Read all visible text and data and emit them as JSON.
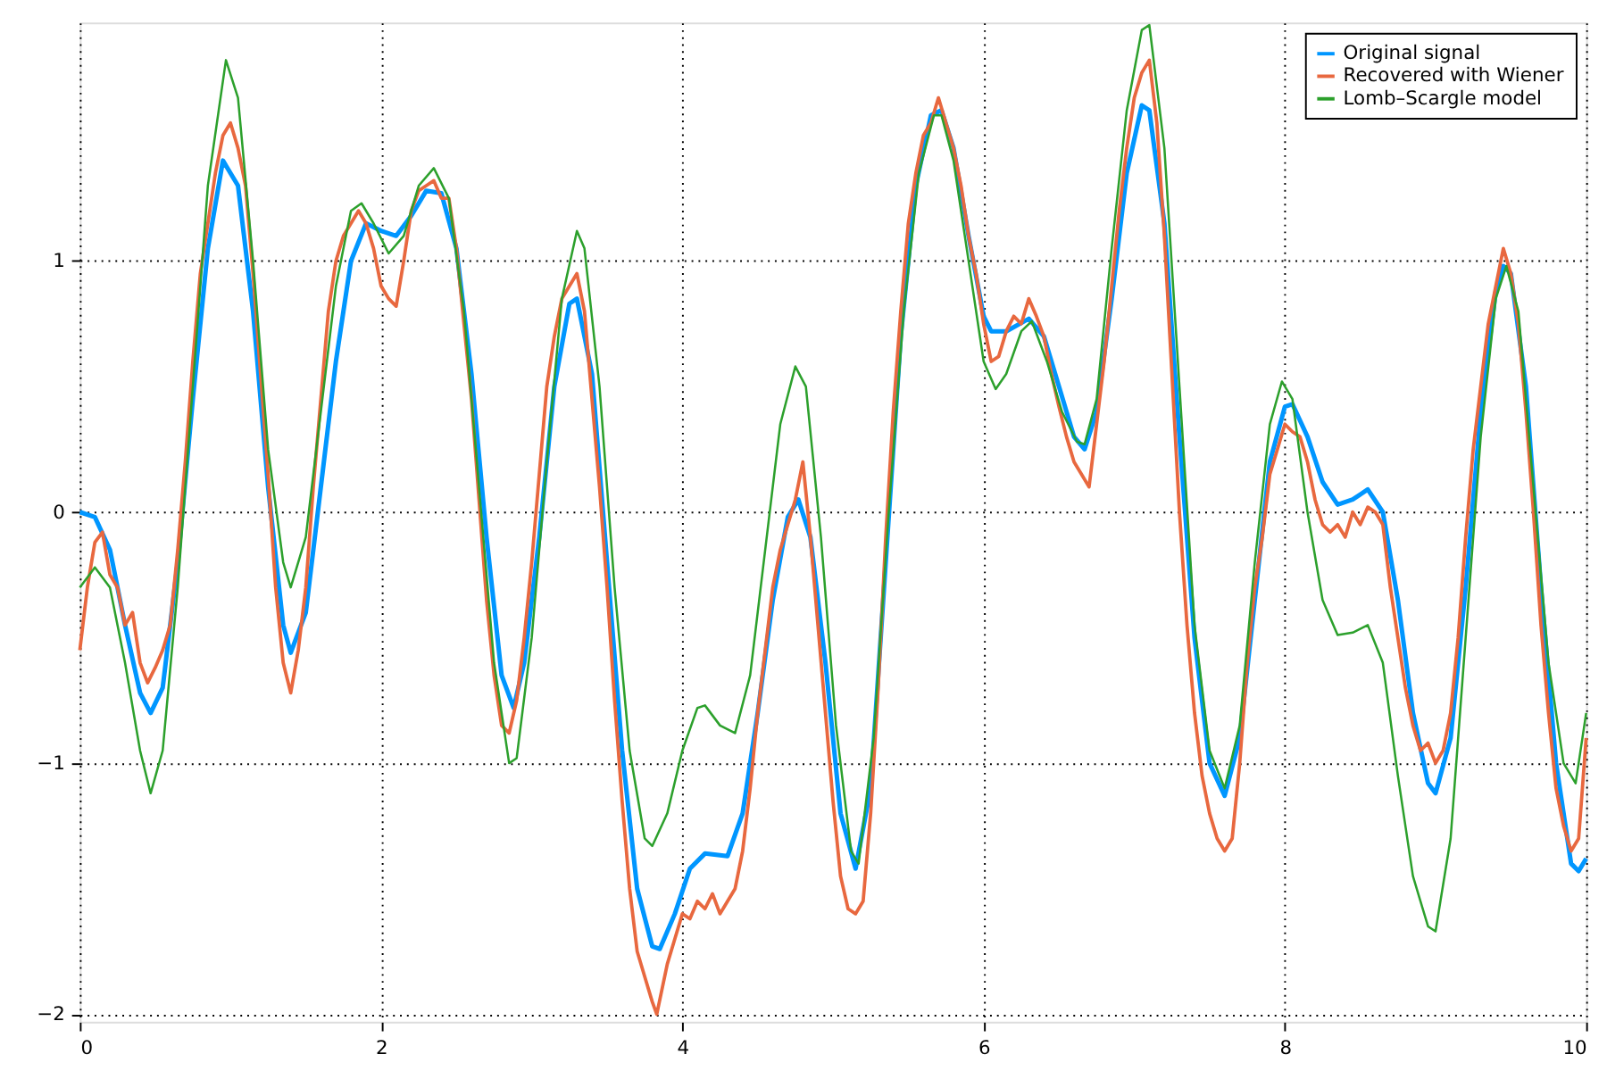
{
  "chart_data": {
    "type": "line",
    "xlim": [
      0,
      10
    ],
    "xticks": [
      0,
      2,
      4,
      6,
      8,
      10
    ],
    "ylim": [
      -2.03,
      1.95
    ],
    "yticks": [
      -2,
      -1,
      0,
      1
    ],
    "grid": true,
    "legend": "top right",
    "line_style": "solid",
    "marker": "none",
    "series": [
      {
        "name": "Original signal",
        "color": "#0096ff",
        "x": [
          0,
          0.1,
          0.2,
          0.3,
          0.4,
          0.47,
          0.55,
          0.65,
          0.75,
          0.85,
          0.95,
          1.05,
          1.15,
          1.25,
          1.35,
          1.4,
          1.5,
          1.6,
          1.7,
          1.8,
          1.9,
          2.0,
          2.1,
          2.2,
          2.3,
          2.4,
          2.5,
          2.6,
          2.7,
          2.8,
          2.88,
          2.95,
          3.05,
          3.15,
          3.25,
          3.3,
          3.4,
          3.5,
          3.6,
          3.7,
          3.8,
          3.85,
          3.95,
          4.05,
          4.15,
          4.3,
          4.4,
          4.5,
          4.6,
          4.7,
          4.77,
          4.85,
          4.95,
          5.05,
          5.15,
          5.25,
          5.35,
          5.45,
          5.55,
          5.65,
          5.72,
          5.8,
          5.9,
          6.0,
          6.05,
          6.15,
          6.3,
          6.4,
          6.5,
          6.6,
          6.67,
          6.75,
          6.85,
          6.95,
          7.05,
          7.1,
          7.2,
          7.3,
          7.4,
          7.5,
          7.6,
          7.7,
          7.8,
          7.9,
          8.0,
          8.05,
          8.15,
          8.25,
          8.35,
          8.45,
          8.55,
          8.65,
          8.75,
          8.85,
          8.95,
          9.0,
          9.1,
          9.2,
          9.3,
          9.4,
          9.45,
          9.5,
          9.6,
          9.7,
          9.8,
          9.9,
          9.95,
          10
        ],
        "values": [
          0,
          -0.02,
          -0.15,
          -0.45,
          -0.72,
          -0.8,
          -0.7,
          -0.2,
          0.45,
          1.05,
          1.4,
          1.3,
          0.8,
          0.1,
          -0.45,
          -0.56,
          -0.4,
          0.1,
          0.6,
          1.0,
          1.15,
          1.12,
          1.1,
          1.18,
          1.28,
          1.27,
          1.05,
          0.55,
          -0.1,
          -0.65,
          -0.78,
          -0.6,
          -0.1,
          0.5,
          0.83,
          0.85,
          0.55,
          -0.2,
          -0.95,
          -1.5,
          -1.73,
          -1.74,
          -1.6,
          -1.42,
          -1.36,
          -1.37,
          -1.2,
          -0.8,
          -0.35,
          -0.02,
          0.05,
          -0.1,
          -0.6,
          -1.2,
          -1.42,
          -1.1,
          -0.2,
          0.7,
          1.3,
          1.58,
          1.6,
          1.45,
          1.1,
          0.78,
          0.72,
          0.72,
          0.77,
          0.7,
          0.5,
          0.3,
          0.25,
          0.4,
          0.85,
          1.35,
          1.62,
          1.6,
          1.15,
          0.3,
          -0.5,
          -1.0,
          -1.13,
          -0.9,
          -0.35,
          0.2,
          0.42,
          0.43,
          0.3,
          0.12,
          0.03,
          0.05,
          0.09,
          0.0,
          -0.35,
          -0.8,
          -1.08,
          -1.12,
          -0.9,
          -0.3,
          0.4,
          0.88,
          0.98,
          0.95,
          0.5,
          -0.3,
          -1.0,
          -1.4,
          -1.43,
          -1.38
        ]
      },
      {
        "name": "Recovered with Wiener",
        "color": "#e8683f",
        "x": [
          0,
          0.05,
          0.1,
          0.15,
          0.2,
          0.25,
          0.3,
          0.35,
          0.4,
          0.45,
          0.5,
          0.55,
          0.6,
          0.65,
          0.7,
          0.75,
          0.8,
          0.85,
          0.9,
          0.95,
          1.0,
          1.05,
          1.1,
          1.15,
          1.2,
          1.25,
          1.3,
          1.35,
          1.4,
          1.45,
          1.5,
          1.55,
          1.6,
          1.65,
          1.7,
          1.75,
          1.8,
          1.85,
          1.9,
          1.95,
          2.0,
          2.05,
          2.1,
          2.15,
          2.2,
          2.25,
          2.3,
          2.35,
          2.4,
          2.45,
          2.5,
          2.55,
          2.6,
          2.65,
          2.7,
          2.75,
          2.8,
          2.85,
          2.9,
          2.95,
          3.0,
          3.05,
          3.1,
          3.15,
          3.2,
          3.25,
          3.3,
          3.35,
          3.4,
          3.45,
          3.5,
          3.55,
          3.6,
          3.65,
          3.7,
          3.75,
          3.8,
          3.83,
          3.9,
          3.95,
          4.0,
          4.05,
          4.1,
          4.15,
          4.2,
          4.25,
          4.3,
          4.35,
          4.4,
          4.45,
          4.5,
          4.55,
          4.6,
          4.65,
          4.7,
          4.75,
          4.8,
          4.85,
          4.9,
          4.95,
          5.0,
          5.05,
          5.1,
          5.15,
          5.2,
          5.25,
          5.3,
          5.35,
          5.4,
          5.45,
          5.5,
          5.55,
          5.6,
          5.65,
          5.7,
          5.75,
          5.8,
          5.85,
          5.9,
          5.95,
          6.0,
          6.05,
          6.1,
          6.15,
          6.2,
          6.25,
          6.3,
          6.35,
          6.4,
          6.45,
          6.5,
          6.55,
          6.6,
          6.65,
          6.7,
          6.75,
          6.8,
          6.85,
          6.9,
          6.95,
          7.0,
          7.05,
          7.1,
          7.15,
          7.2,
          7.25,
          7.3,
          7.35,
          7.4,
          7.45,
          7.5,
          7.55,
          7.6,
          7.65,
          7.7,
          7.75,
          7.8,
          7.85,
          7.9,
          7.95,
          8.0,
          8.05,
          8.1,
          8.15,
          8.2,
          8.25,
          8.3,
          8.35,
          8.4,
          8.45,
          8.5,
          8.55,
          8.6,
          8.65,
          8.7,
          8.75,
          8.8,
          8.85,
          8.9,
          8.95,
          9.0,
          9.05,
          9.1,
          9.15,
          9.2,
          9.25,
          9.3,
          9.35,
          9.4,
          9.45,
          9.5,
          9.55,
          9.6,
          9.65,
          9.7,
          9.75,
          9.8,
          9.85,
          9.9,
          9.95,
          10
        ],
        "values": [
          -0.55,
          -0.3,
          -0.12,
          -0.08,
          -0.25,
          -0.3,
          -0.45,
          -0.4,
          -0.6,
          -0.68,
          -0.62,
          -0.55,
          -0.45,
          -0.15,
          0.2,
          0.6,
          0.95,
          1.15,
          1.35,
          1.5,
          1.55,
          1.45,
          1.3,
          0.95,
          0.55,
          0.15,
          -0.3,
          -0.6,
          -0.72,
          -0.55,
          -0.3,
          0.1,
          0.45,
          0.8,
          1.0,
          1.1,
          1.15,
          1.2,
          1.15,
          1.05,
          0.9,
          0.85,
          0.82,
          1.0,
          1.2,
          1.28,
          1.3,
          1.32,
          1.25,
          1.25,
          1.05,
          0.75,
          0.45,
          0.05,
          -0.35,
          -0.65,
          -0.85,
          -0.88,
          -0.75,
          -0.5,
          -0.2,
          0.15,
          0.5,
          0.7,
          0.85,
          0.9,
          0.95,
          0.8,
          0.45,
          0.1,
          -0.3,
          -0.75,
          -1.15,
          -1.5,
          -1.75,
          -1.85,
          -1.95,
          -2.0,
          -1.8,
          -1.7,
          -1.6,
          -1.62,
          -1.55,
          -1.58,
          -1.52,
          -1.6,
          -1.55,
          -1.5,
          -1.35,
          -1.1,
          -0.8,
          -0.55,
          -0.3,
          -0.15,
          -0.05,
          0.05,
          0.2,
          -0.1,
          -0.45,
          -0.8,
          -1.15,
          -1.45,
          -1.58,
          -1.6,
          -1.55,
          -1.2,
          -0.7,
          -0.1,
          0.4,
          0.8,
          1.15,
          1.35,
          1.5,
          1.55,
          1.65,
          1.55,
          1.45,
          1.3,
          1.1,
          0.95,
          0.75,
          0.6,
          0.62,
          0.72,
          0.78,
          0.75,
          0.85,
          0.78,
          0.7,
          0.55,
          0.42,
          0.3,
          0.2,
          0.15,
          0.1,
          0.35,
          0.6,
          0.9,
          1.2,
          1.45,
          1.65,
          1.75,
          1.8,
          1.55,
          1.1,
          0.55,
          0.0,
          -0.45,
          -0.8,
          -1.05,
          -1.2,
          -1.3,
          -1.35,
          -1.3,
          -1.0,
          -0.6,
          -0.3,
          -0.1,
          0.15,
          0.25,
          0.35,
          0.32,
          0.3,
          0.2,
          0.05,
          -0.05,
          -0.08,
          -0.05,
          -0.1,
          0.0,
          -0.05,
          0.02,
          0.0,
          -0.05,
          -0.3,
          -0.5,
          -0.7,
          -0.85,
          -0.95,
          -0.92,
          -1.0,
          -0.95,
          -0.8,
          -0.5,
          -0.1,
          0.25,
          0.5,
          0.75,
          0.9,
          1.05,
          0.95,
          0.75,
          0.4,
          0.0,
          -0.45,
          -0.8,
          -1.1,
          -1.25,
          -1.35,
          -1.3,
          -0.9
        ]
      },
      {
        "name": "Lomb–Scargle model",
        "color": "#2ca02c",
        "x": [
          0,
          0.1,
          0.2,
          0.3,
          0.4,
          0.47,
          0.55,
          0.65,
          0.75,
          0.85,
          0.97,
          1.05,
          1.15,
          1.25,
          1.35,
          1.4,
          1.5,
          1.6,
          1.7,
          1.8,
          1.87,
          1.95,
          2.05,
          2.15,
          2.25,
          2.35,
          2.45,
          2.55,
          2.65,
          2.75,
          2.85,
          2.9,
          3.0,
          3.1,
          3.2,
          3.3,
          3.35,
          3.45,
          3.55,
          3.65,
          3.75,
          3.8,
          3.9,
          4.0,
          4.1,
          4.15,
          4.25,
          4.35,
          4.45,
          4.55,
          4.65,
          4.75,
          4.82,
          4.92,
          5.02,
          5.12,
          5.17,
          5.27,
          5.37,
          5.47,
          5.57,
          5.67,
          5.72,
          5.8,
          5.9,
          6.0,
          6.08,
          6.15,
          6.25,
          6.32,
          6.42,
          6.52,
          6.62,
          6.67,
          6.75,
          6.85,
          6.95,
          7.05,
          7.1,
          7.2,
          7.3,
          7.4,
          7.5,
          7.6,
          7.7,
          7.8,
          7.9,
          7.98,
          8.05,
          8.15,
          8.25,
          8.35,
          8.45,
          8.55,
          8.65,
          8.75,
          8.85,
          8.95,
          9.0,
          9.1,
          9.2,
          9.3,
          9.4,
          9.47,
          9.55,
          9.65,
          9.75,
          9.85,
          9.93,
          10
        ],
        "values": [
          -0.3,
          -0.22,
          -0.3,
          -0.6,
          -0.95,
          -1.12,
          -0.95,
          -0.3,
          0.5,
          1.3,
          1.8,
          1.65,
          1.0,
          0.25,
          -0.2,
          -0.3,
          -0.1,
          0.4,
          0.9,
          1.2,
          1.23,
          1.15,
          1.03,
          1.1,
          1.3,
          1.37,
          1.25,
          0.8,
          0.1,
          -0.6,
          -1.0,
          -0.98,
          -0.5,
          0.2,
          0.85,
          1.12,
          1.05,
          0.5,
          -0.3,
          -0.95,
          -1.3,
          -1.33,
          -1.2,
          -0.95,
          -0.78,
          -0.77,
          -0.85,
          -0.88,
          -0.65,
          -0.15,
          0.35,
          0.58,
          0.5,
          -0.1,
          -0.85,
          -1.35,
          -1.4,
          -0.9,
          0.0,
          0.8,
          1.35,
          1.58,
          1.58,
          1.4,
          1.0,
          0.6,
          0.49,
          0.55,
          0.72,
          0.76,
          0.6,
          0.4,
          0.28,
          0.27,
          0.45,
          1.05,
          1.6,
          1.92,
          1.94,
          1.45,
          0.5,
          -0.45,
          -0.95,
          -1.1,
          -0.85,
          -0.2,
          0.35,
          0.52,
          0.45,
          0.0,
          -0.35,
          -0.49,
          -0.48,
          -0.45,
          -0.6,
          -1.05,
          -1.45,
          -1.65,
          -1.67,
          -1.3,
          -0.5,
          0.3,
          0.85,
          0.98,
          0.8,
          0.1,
          -0.6,
          -1.0,
          -1.08,
          -0.8
        ]
      }
    ]
  }
}
